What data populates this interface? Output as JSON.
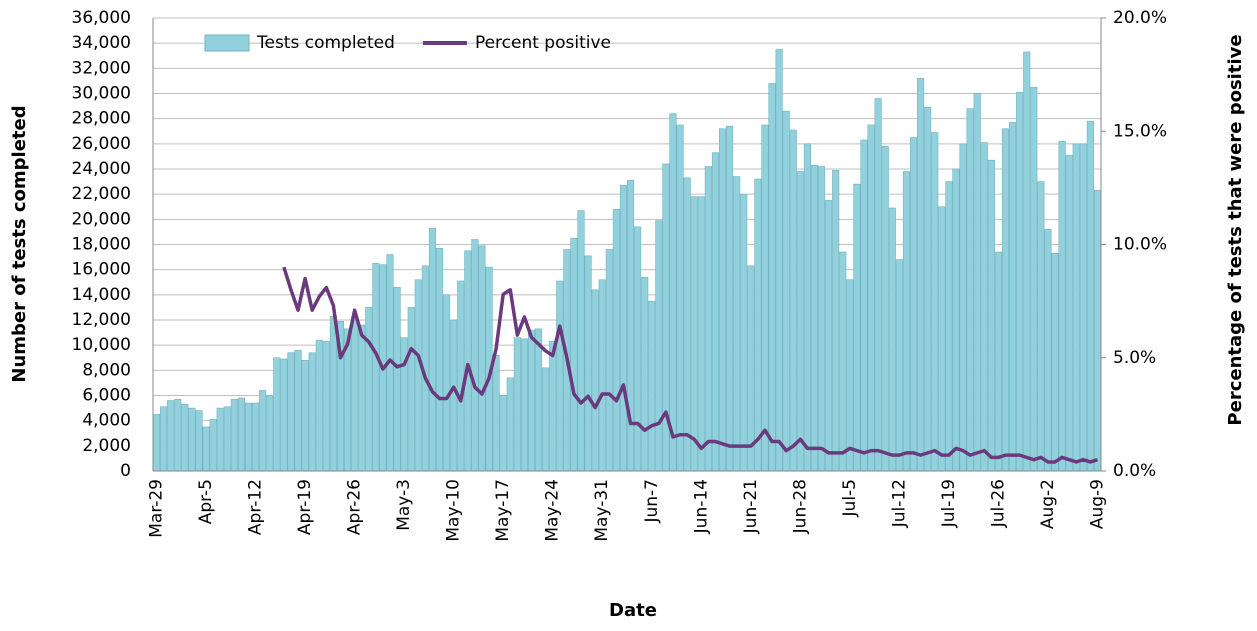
{
  "chart_data": {
    "type": "bar",
    "x_label": "Date",
    "y_label": "Number of tests completed",
    "y2_label": "Percentage of tests that were positive",
    "categories": [
      "Mar-29",
      null,
      null,
      null,
      null,
      null,
      null,
      "Apr-5",
      null,
      null,
      null,
      null,
      null,
      null,
      "Apr-12",
      null,
      null,
      null,
      null,
      null,
      null,
      "Apr-19",
      null,
      null,
      null,
      null,
      null,
      null,
      "Apr-26",
      null,
      null,
      null,
      null,
      null,
      null,
      "May-3",
      null,
      null,
      null,
      null,
      null,
      null,
      "May-10",
      null,
      null,
      null,
      null,
      null,
      null,
      "May-17",
      null,
      null,
      null,
      null,
      null,
      null,
      "May-24",
      null,
      null,
      null,
      null,
      null,
      null,
      "May-31",
      null,
      null,
      null,
      null,
      null,
      null,
      "Jun-7",
      null,
      null,
      null,
      null,
      null,
      null,
      "Jun-14",
      null,
      null,
      null,
      null,
      null,
      null,
      "Jun-21",
      null,
      null,
      null,
      null,
      null,
      null,
      "Jun-28",
      null,
      null,
      null,
      null,
      null,
      null,
      "Jul-5",
      null,
      null,
      null,
      null,
      null,
      null,
      "Jul-12",
      null,
      null,
      null,
      null,
      null,
      null,
      "Jul-19",
      null,
      null,
      null,
      null,
      null,
      null,
      "Jul-26",
      null,
      null,
      null,
      null,
      null,
      null,
      "Aug-2",
      null,
      null,
      null,
      null,
      null,
      null,
      "Aug-9"
    ],
    "series": [
      {
        "name": "Tests completed",
        "type": "bar",
        "color": "#92d1dc",
        "values": [
          4500,
          5100,
          5600,
          5700,
          5300,
          5000,
          4800,
          3500,
          4100,
          5000,
          5100,
          5700,
          5800,
          5400,
          5400,
          6400,
          6000,
          9000,
          8900,
          9400,
          9600,
          8800,
          9400,
          10400,
          10300,
          12300,
          11900,
          11300,
          12200,
          11600,
          13000,
          16500,
          16400,
          17200,
          14600,
          10600,
          13000,
          15200,
          16300,
          19300,
          17700,
          14000,
          12000,
          15100,
          17500,
          18400,
          17900,
          16200,
          9200,
          6000,
          7400,
          10600,
          10500,
          11200,
          11300,
          8200,
          10300,
          15100,
          17600,
          18500,
          20700,
          17100,
          14400,
          15200,
          17600,
          20800,
          22700,
          23100,
          19400,
          15400,
          13500,
          19900,
          24400,
          28400,
          27500,
          23300,
          21800,
          21800,
          24200,
          25300,
          27200,
          27400,
          23400,
          22000,
          16300,
          23200,
          27500,
          30800,
          33500,
          28600,
          27100,
          23800,
          26000,
          24300,
          24200,
          21500,
          23900,
          17400,
          15200,
          22800,
          26300,
          27500,
          29600,
          25800,
          20900,
          16800,
          23800,
          26500,
          31200,
          28900,
          26900,
          21000,
          23000,
          24000,
          26000,
          28800,
          30000,
          26100,
          24700,
          17400,
          27200,
          27700,
          30100,
          33300,
          30500,
          23000,
          19200,
          17300,
          26200,
          25100,
          26000,
          26000,
          27800,
          22300
        ]
      },
      {
        "name": "Percent positive",
        "type": "line",
        "axis": "y2",
        "color": "#6b3a7d",
        "values": [
          null,
          null,
          null,
          null,
          null,
          null,
          null,
          null,
          null,
          null,
          null,
          null,
          null,
          null,
          null,
          null,
          null,
          null,
          9.0,
          8.0,
          7.1,
          8.5,
          7.1,
          7.7,
          8.1,
          7.3,
          5.0,
          5.6,
          7.1,
          6.0,
          5.7,
          5.2,
          4.5,
          4.9,
          4.6,
          4.7,
          5.4,
          5.1,
          4.1,
          3.5,
          3.2,
          3.2,
          3.7,
          3.1,
          4.7,
          3.7,
          3.4,
          4.1,
          5.4,
          7.8,
          8.0,
          6.0,
          6.8,
          5.9,
          5.6,
          5.3,
          5.1,
          6.4,
          5.0,
          3.4,
          3.0,
          3.3,
          2.8,
          3.4,
          3.4,
          3.1,
          3.8,
          2.1,
          2.1,
          1.8,
          2.0,
          2.1,
          2.6,
          1.5,
          1.6,
          1.6,
          1.4,
          1.0,
          1.3,
          1.3,
          1.2,
          1.1,
          1.1,
          1.1,
          1.1,
          1.4,
          1.8,
          1.3,
          1.3,
          0.9,
          1.1,
          1.4,
          1.0,
          1.0,
          1.0,
          0.8,
          0.8,
          0.8,
          1.0,
          0.9,
          0.8,
          0.9,
          0.9,
          0.8,
          0.7,
          0.7,
          0.8,
          0.8,
          0.7,
          0.8,
          0.9,
          0.7,
          0.7,
          1.0,
          0.9,
          0.7,
          0.8,
          0.9,
          0.6,
          0.6,
          0.7,
          0.7,
          0.7,
          0.6,
          0.5,
          0.6,
          0.4,
          0.4,
          0.6,
          0.5,
          0.4,
          0.5,
          0.4,
          0.5
        ]
      }
    ],
    "ylim": [
      0,
      36000
    ],
    "yticks": [
      0,
      {
        "value": 2000,
        "label": "2,000"
      },
      {
        "value": 4000,
        "label": "4,000"
      },
      {
        "value": 6000,
        "label": "6,000"
      },
      {
        "value": 8000,
        "label": "8,000"
      },
      {
        "value": 10000,
        "label": "10,000"
      },
      {
        "value": 12000,
        "label": "12,000"
      },
      {
        "value": 14000,
        "label": "14,000"
      },
      {
        "value": 16000,
        "label": "16,000"
      },
      {
        "value": 18000,
        "label": "18,000"
      },
      {
        "value": 20000,
        "label": "20,000"
      },
      {
        "value": 22000,
        "label": "22,000"
      },
      {
        "value": 24000,
        "label": "24,000"
      },
      {
        "value": 26000,
        "label": "26,000"
      },
      {
        "value": 28000,
        "label": "28,000"
      },
      {
        "value": 30000,
        "label": "30,000"
      },
      {
        "value": 32000,
        "label": "32,000"
      },
      {
        "value": 34000,
        "label": "34,000"
      },
      {
        "value": 36000,
        "label": "36,000"
      }
    ],
    "y2lim": [
      0,
      20
    ],
    "y2ticks": [
      {
        "value": 0,
        "label": "0.0%"
      },
      {
        "value": 5,
        "label": "5.0%"
      },
      {
        "value": 10,
        "label": "10.0%"
      },
      {
        "value": 15,
        "label": "15.0%"
      },
      {
        "value": 20,
        "label": "20.0%"
      }
    ],
    "grid": true,
    "legend": "top-left"
  }
}
